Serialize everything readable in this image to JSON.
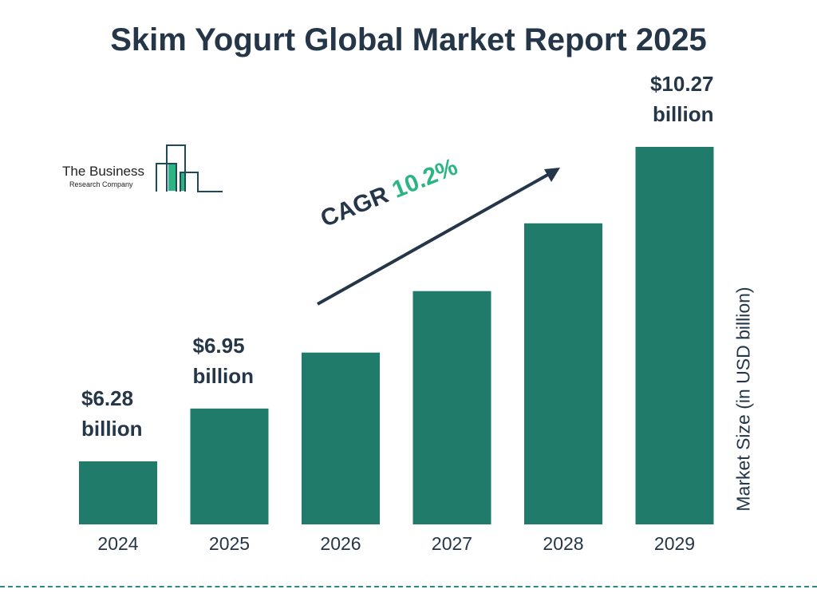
{
  "chart_data": {
    "type": "bar",
    "title": "Skim Yogurt Global Market Report 2025",
    "categories": [
      "2024",
      "2025",
      "2026",
      "2027",
      "2028",
      "2029"
    ],
    "values": [
      6.28,
      6.95,
      7.66,
      8.44,
      9.3,
      10.27
    ],
    "data_labels": {
      "0": [
        "$6.28",
        "billion"
      ],
      "1": [
        "$6.95",
        "billion"
      ],
      "5": [
        "$10.27",
        "billion"
      ]
    },
    "ylabel": "Market Size (in USD billion)",
    "xlabel": "",
    "annotation": {
      "prefix": "CAGR",
      "value": "10.2%"
    },
    "grid": false,
    "bar_color": "#217b6b",
    "accent_color": "#2bb583",
    "text_color": "#253648"
  },
  "logo": {
    "line1": "The Business",
    "line2": "Research Company"
  }
}
